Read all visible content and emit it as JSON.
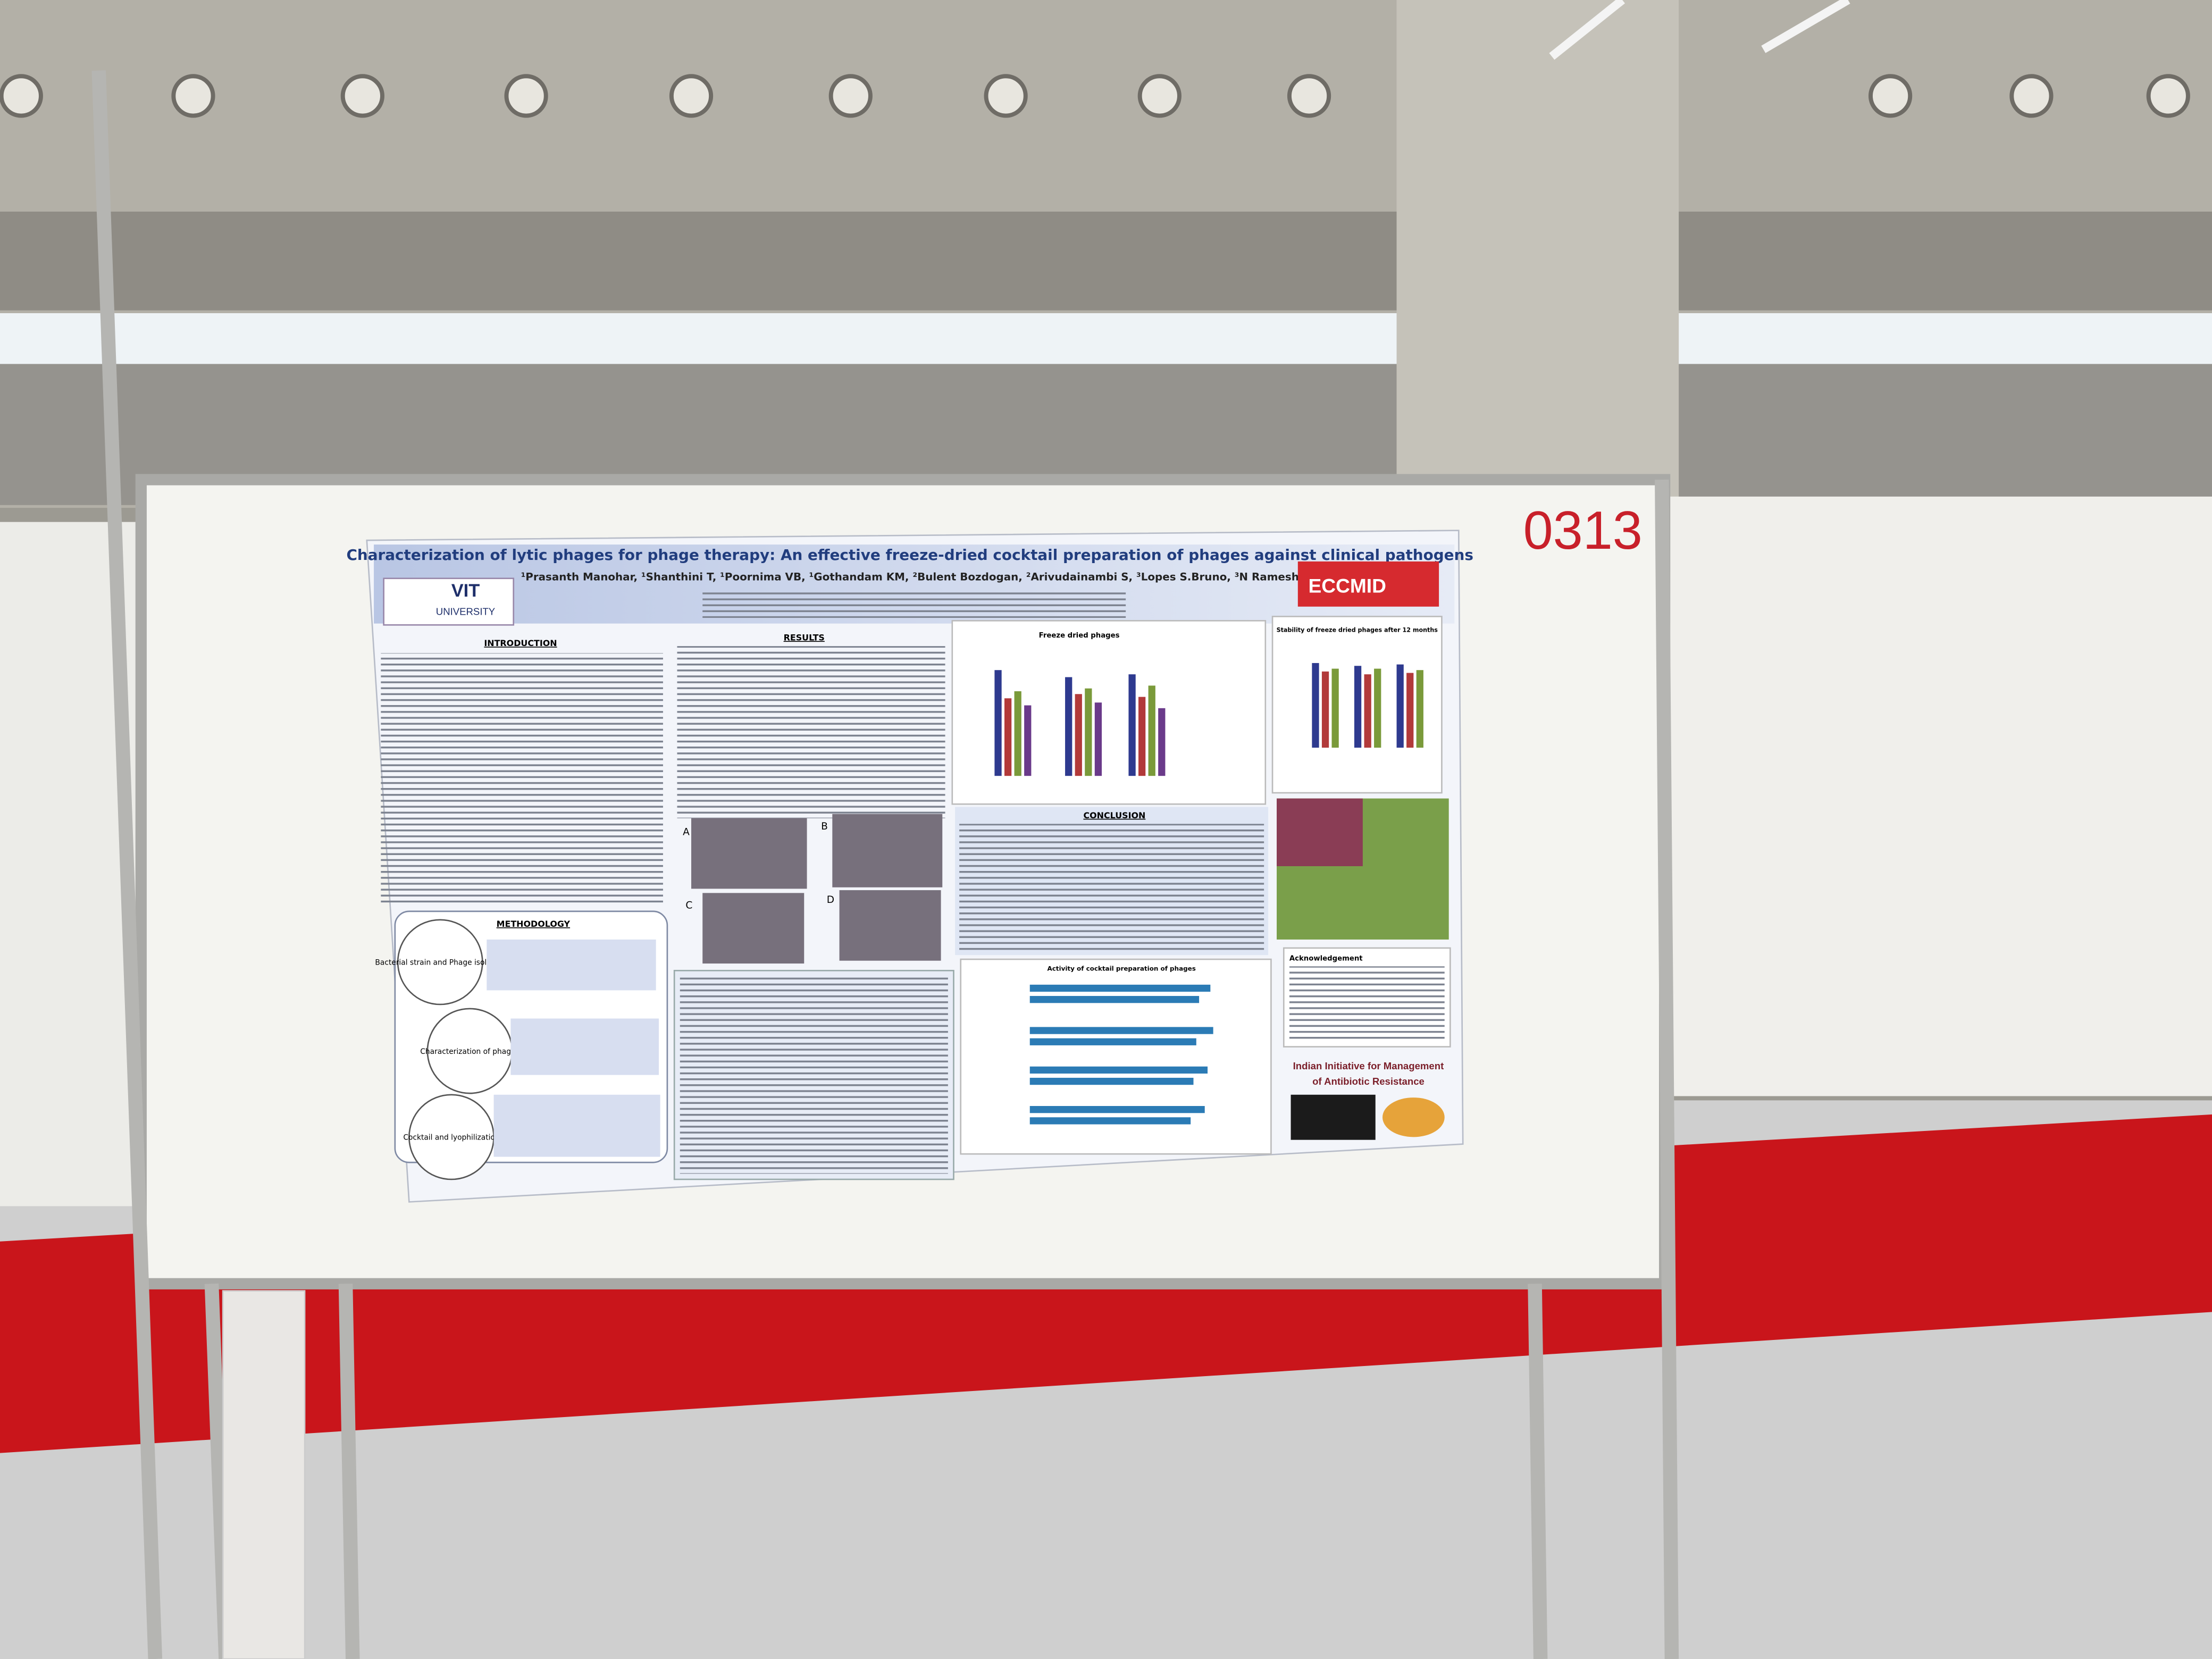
{
  "booth_number": "0313",
  "poster": {
    "title": "Characterization of lytic phages for phage therapy: An effective freeze-dried cocktail preparation of phages against clinical pathogens",
    "authors": "¹Prasanth Manohar, ¹Shanthini T, ¹Poornima VB, ¹Gothandam KM, ²Bulent Bozdogan, ²Arivudainambi S, ³Lopes S.Bruno, ³N Ramesh",
    "logo": [
      "VIT",
      "UNIVERSITY"
    ],
    "conference": "ECCMID",
    "sections": {
      "introduction": "INTRODUCTION",
      "results": "RESULTS",
      "methodology": "METHODOLOGY",
      "conclusion": "CONCLUSION"
    },
    "charts": [
      "Freeze dried phages",
      "Stability of freeze dried phages after 12 months",
      "Activity of cocktail preparation of phages"
    ],
    "methodology_steps": [
      "Bacterial strain and Phage isolation",
      "Characterization of phages",
      "Cocktail and lyophilization"
    ],
    "tem_panels": [
      "A",
      "B",
      "C",
      "D"
    ],
    "acknowledgement": "Acknowledgement",
    "footer_logo": [
      "Indian Initiative for Management",
      "of Antibiotic Resistance"
    ]
  }
}
